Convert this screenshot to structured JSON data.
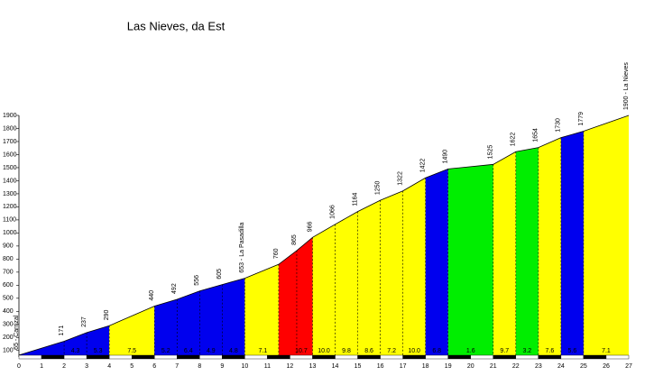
{
  "chart_data": {
    "type": "profile",
    "title": "Las Nieves, da Est",
    "x": [
      0,
      2,
      3,
      4,
      6,
      7,
      8,
      9,
      10,
      11.5,
      12.3,
      13,
      14,
      15,
      16,
      17,
      18,
      19,
      21,
      22,
      23,
      24,
      25,
      27
    ],
    "values": [
      65,
      171,
      237,
      290,
      440,
      492,
      556,
      605,
      653,
      760,
      865,
      966,
      1066,
      1164,
      1250,
      1322,
      1422,
      1490,
      1525,
      1622,
      1654,
      1730,
      1779,
      1900
    ],
    "value_labels": [
      "65 - Carrizal",
      "171",
      "237",
      "290",
      "440",
      "492",
      "556",
      "605",
      "653 - La Pasadilla",
      "760",
      "865",
      "966",
      "1066",
      "1164",
      "1250",
      "1322",
      "1422",
      "1490",
      "1525",
      "1622",
      "1654",
      "1730",
      "1779",
      "1900 - La Nieves"
    ],
    "segments": [
      {
        "from": 0,
        "to": 4,
        "color": "#0000ee"
      },
      {
        "from": 4,
        "to": 6,
        "color": "#ffff00"
      },
      {
        "from": 6,
        "to": 10,
        "color": "#0000ee"
      },
      {
        "from": 10,
        "to": 11.5,
        "color": "#ffff00"
      },
      {
        "from": 11.5,
        "to": 13,
        "color": "#ff0000"
      },
      {
        "from": 13,
        "to": 18,
        "color": "#ffff00"
      },
      {
        "from": 18,
        "to": 19,
        "color": "#0000ee"
      },
      {
        "from": 19,
        "to": 21,
        "color": "#00ee00"
      },
      {
        "from": 21,
        "to": 22,
        "color": "#ffff00"
      },
      {
        "from": 22,
        "to": 23,
        "color": "#00ee00"
      },
      {
        "from": 23,
        "to": 24,
        "color": "#ffff00"
      },
      {
        "from": 24,
        "to": 25,
        "color": "#0000ee"
      },
      {
        "from": 25,
        "to": 27,
        "color": "#ffff00"
      }
    ],
    "gradients": {
      "x": [
        2.5,
        3.5,
        5,
        6.5,
        7.5,
        8.5,
        9.5,
        10.8,
        12.5,
        13.5,
        14.5,
        15.5,
        16.5,
        17.5,
        18.5,
        20,
        21.5,
        22.5,
        23.5,
        24.5,
        26
      ],
      "values": [
        4.3,
        5.3,
        7.5,
        5.2,
        6.4,
        4.9,
        4.8,
        7.1,
        10.7,
        10.0,
        9.8,
        8.6,
        7.2,
        10.0,
        6.8,
        1.6,
        9.7,
        3.2,
        7.6,
        5.6,
        7.1
      ],
      "value_labels": [
        "4.3",
        "5.3",
        "7.5",
        "5.2",
        "6.4",
        "4.9",
        "4.8",
        "7.1",
        "10.7",
        "10.0",
        "9.8",
        "8.6",
        "7.2",
        "10.0",
        "6.8",
        "1.6",
        "9.7",
        "3.2",
        "7.6",
        "5.6",
        "7.1"
      ]
    },
    "xlim": [
      0,
      27
    ],
    "xticks": [
      0,
      1,
      2,
      3,
      4,
      5,
      6,
      7,
      8,
      9,
      10,
      11,
      12,
      13,
      14,
      15,
      16,
      17,
      18,
      19,
      20,
      21,
      22,
      23,
      24,
      25,
      26,
      27
    ],
    "ylim": [
      50,
      1900
    ],
    "yticks": [
      100,
      200,
      300,
      400,
      500,
      600,
      700,
      800,
      900,
      1000,
      1100,
      1200,
      1300,
      1400,
      1500,
      1600,
      1700,
      1800,
      1900
    ]
  }
}
